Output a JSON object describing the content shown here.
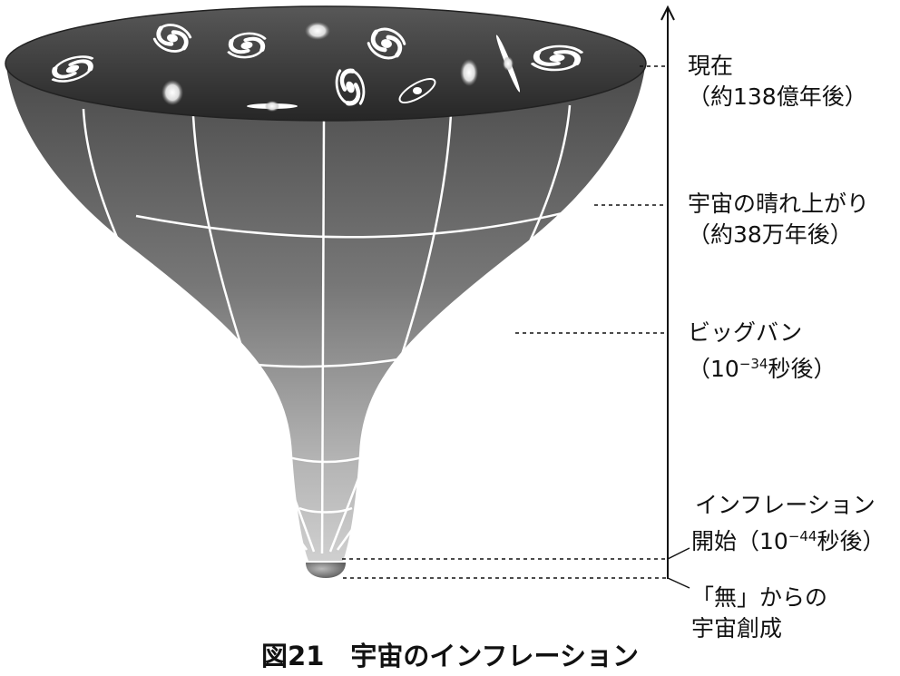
{
  "labels": {
    "present_line1": "現在",
    "present_line2": "（約138億年後）",
    "clear_line1": "宇宙の晴れ上がり",
    "clear_line2": "（約38万年後）",
    "bigbang_line1": "ビッグバン",
    "bigbang_line2_prefix": "（10",
    "bigbang_exponent": "−34",
    "bigbang_line2_suffix": "秒後）",
    "inflation_line1": "インフレーション",
    "inflation_line2_prefix": "開始（10",
    "inflation_exponent": "−44",
    "inflation_line2_suffix": "秒後）",
    "nothing_line1": "「無」からの",
    "nothing_line2": "宇宙創成"
  },
  "caption": "図21　宇宙のインフレーション",
  "colors": {
    "funnel_top": "#4a4a4a",
    "funnel_bottom": "#cfcfcf",
    "rim_top": "#5a5a5a",
    "rim_bottom": "#2a2a2a",
    "grid": "#ffffff",
    "galaxy": "#ffffff"
  }
}
